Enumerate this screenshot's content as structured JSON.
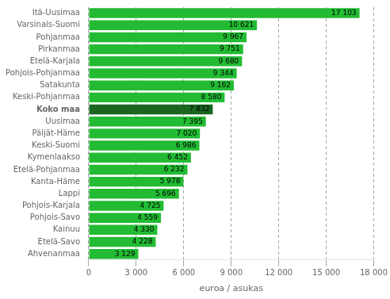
{
  "chart_data": {
    "type": "bar",
    "orientation": "horizontal",
    "xlabel": "euroa / asukas",
    "categories": [
      "Ahvenanmaa",
      "Etelä-Savo",
      "Kainuu",
      "Pohjois-Savo",
      "Pohjois-Karjala",
      "Lappi",
      "Kanta-Häme",
      "Etelä-Pohjanmaa",
      "Kymenlaakso",
      "Keski-Suomi",
      "Päijät-Häme",
      "Uusimaa",
      "Koko maa",
      "Keski-Pohjanmaa",
      "Satakunta",
      "Pohjois-Pohjanmaa",
      "Etelä-Karjala",
      "Pirkanmaa",
      "Pohjanmaa",
      "Varsinais-Suomi",
      "Itä-Uusimaa"
    ],
    "values": [
      3129,
      4228,
      4330,
      4559,
      4725,
      5696,
      5978,
      6232,
      6452,
      6986,
      7020,
      7395,
      7832,
      8580,
      9162,
      9344,
      9680,
      9751,
      9967,
      10621,
      17103
    ],
    "value_labels": [
      "3 129",
      "4 228",
      "4 330",
      "4 559",
      "4 725",
      "5 696",
      "5 978",
      "6 232",
      "6 452",
      "6 986",
      "7 020",
      "7 395",
      "7 832",
      "8 580",
      "9 162",
      "9 344",
      "9 680",
      "9 751",
      "9 967",
      "10 621",
      "17 103"
    ],
    "data_labels": true,
    "colors": [
      "#22bb33",
      "#22bb33",
      "#22bb33",
      "#22bb33",
      "#22bb33",
      "#22bb33",
      "#22bb33",
      "#22bb33",
      "#22bb33",
      "#22bb33",
      "#22bb33",
      "#22bb33",
      "#1a6620",
      "#22bb33",
      "#22bb33",
      "#22bb33",
      "#22bb33",
      "#22bb33",
      "#22bb33",
      "#22bb33",
      "#22bb33"
    ],
    "xlim": [
      0,
      18000
    ],
    "xticks": [
      0,
      {
        "value": 3000,
        "label": "3 000"
      },
      {
        "value": 6000,
        "label": "6 000"
      },
      {
        "value": 9000,
        "label": "9 000"
      },
      {
        "value": 12000,
        "label": "12 000"
      },
      {
        "value": 15000,
        "label": "15 000"
      },
      {
        "value": 18000,
        "label": "18 000"
      }
    ],
    "grid": true
  }
}
